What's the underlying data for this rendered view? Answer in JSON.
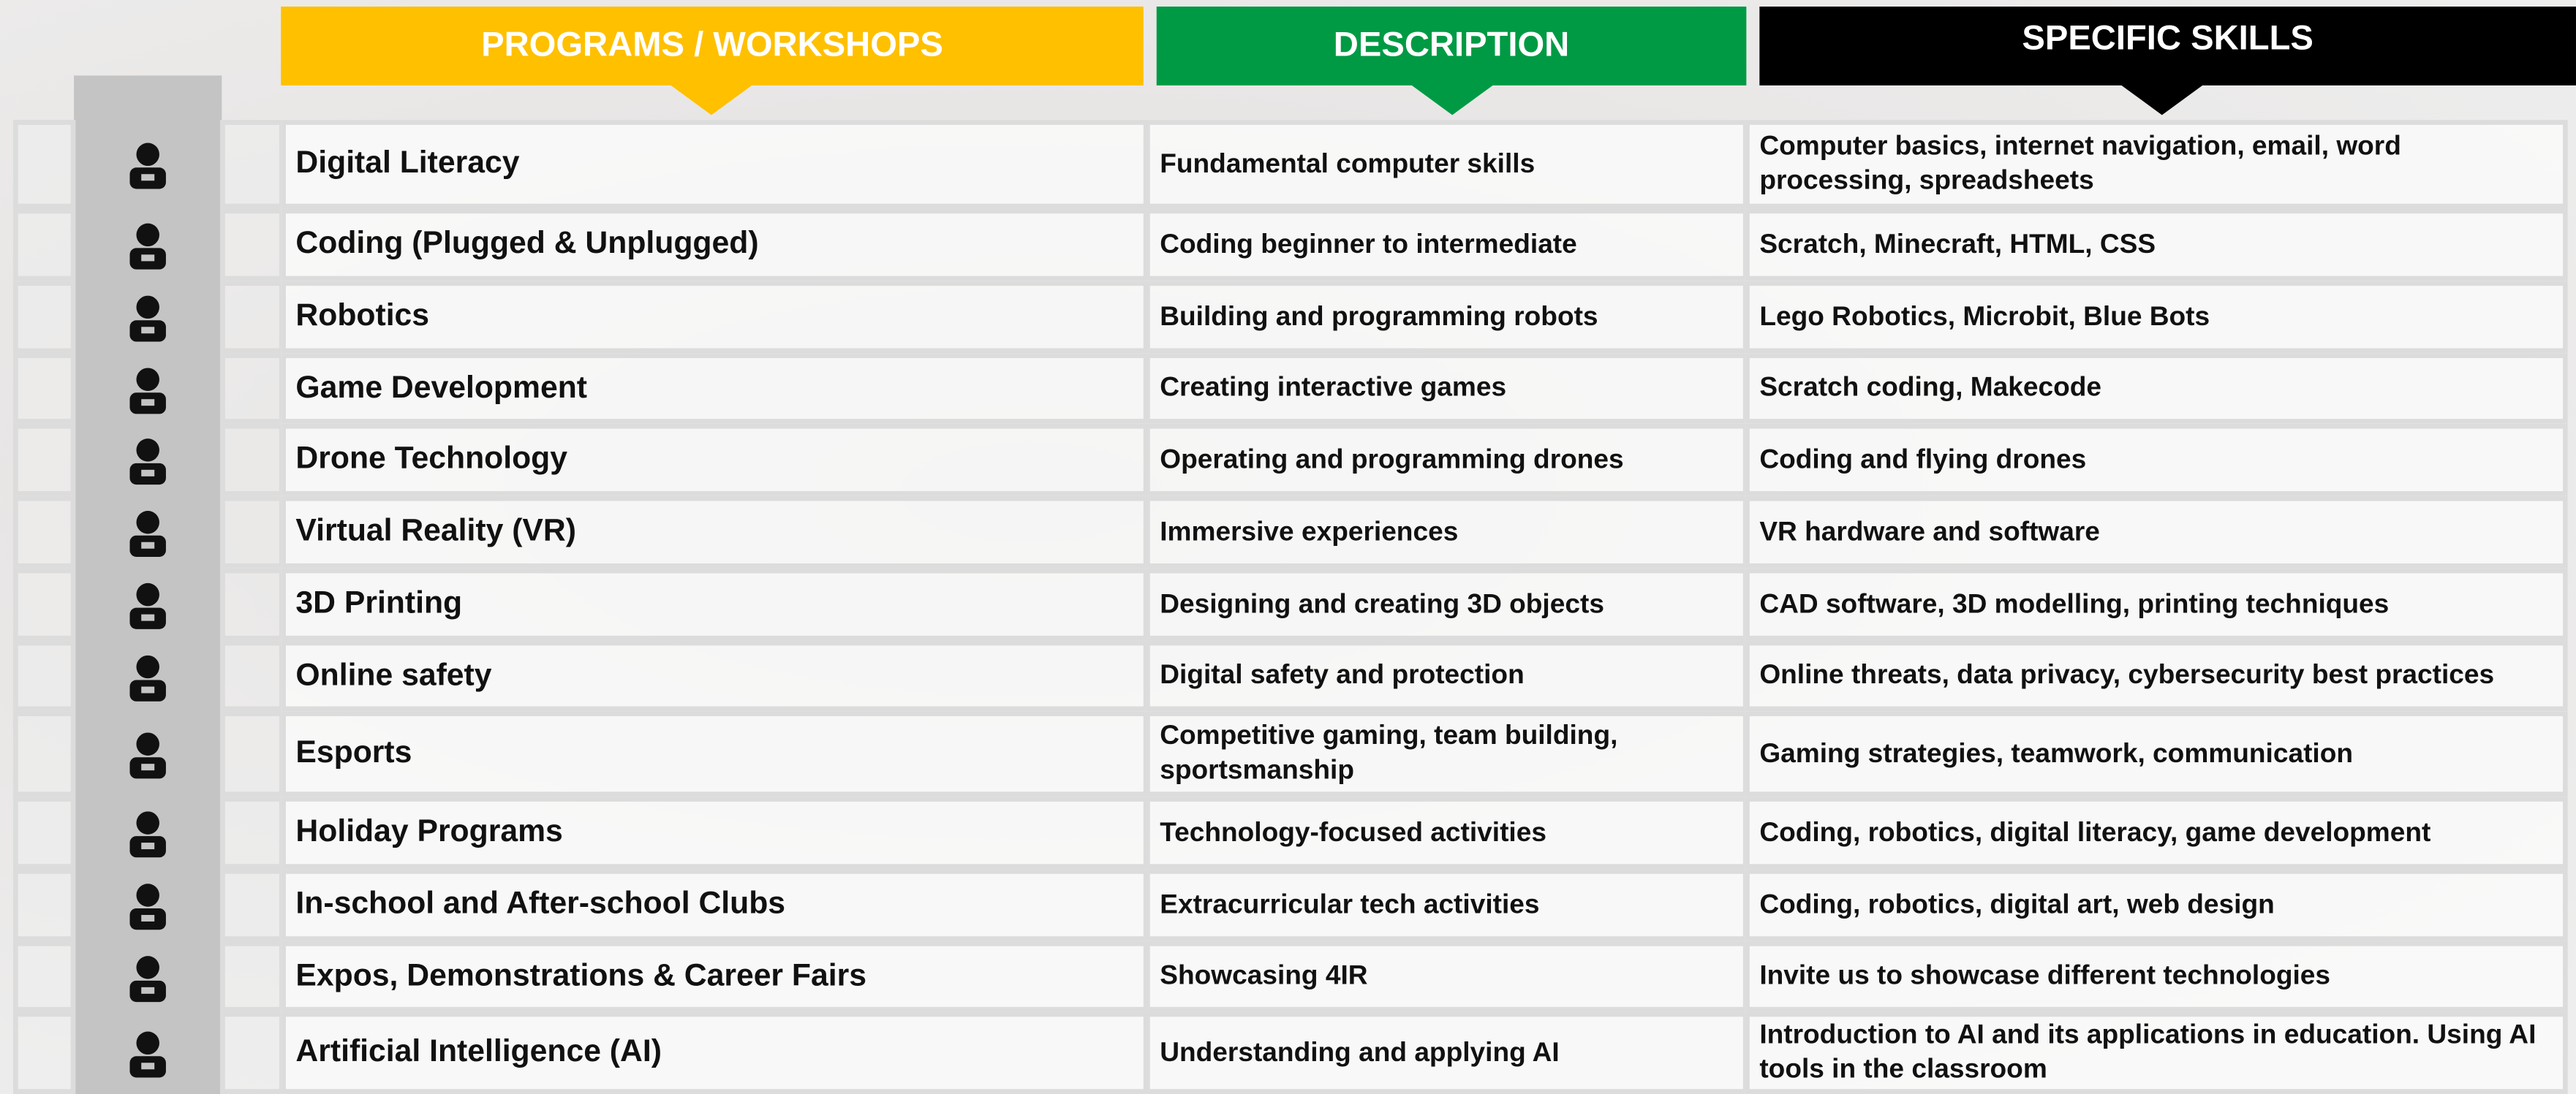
{
  "headers": [
    "PROGRAMS / WORKSHOPS",
    "DESCRIPTION",
    "SPECIFIC SKILLS"
  ],
  "rows": [
    [
      "Digital Literacy",
      "Fundamental computer skills",
      "Computer basics, internet navigation, email, word processing, spreadsheets"
    ],
    [
      "Coding (Plugged & Unplugged)",
      "Coding beginner to intermediate",
      "Scratch, Minecraft, HTML, CSS"
    ],
    [
      "Robotics",
      "Building and programming robots",
      "Lego Robotics, Microbit, Blue Bots"
    ],
    [
      "Game Development",
      "Creating interactive games",
      "Scratch coding, Makecode"
    ],
    [
      "Drone Technology",
      "Operating and programming drones",
      "Coding and flying drones"
    ],
    [
      "Virtual Reality (VR)",
      "Immersive experiences",
      "VR hardware and software"
    ],
    [
      "3D Printing",
      "Designing and creating 3D objects",
      "CAD software, 3D modelling, printing techniques"
    ],
    [
      "Online safety",
      "Digital safety and protection",
      "Online threats, data privacy, cybersecurity best practices"
    ],
    [
      "Esports",
      "Competitive gaming, team building, sportsmanship",
      "Gaming strategies, teamwork, communication"
    ],
    [
      "Holiday Programs",
      "Technology-focused activities",
      "Coding, robotics, digital literacy, game development"
    ],
    [
      "In-school and After-school Clubs",
      "Extracurricular tech activities",
      "Coding, robotics, digital art, web design"
    ],
    [
      "Expos, Demonstrations & Career Fairs",
      "Showcasing 4IR",
      "Invite us to showcase different technologies"
    ],
    [
      "Artificial Intelligence (AI)",
      "Understanding and applying AI",
      "Introduction to AI and its applications in education. Using AI tools in the classroom"
    ]
  ]
}
